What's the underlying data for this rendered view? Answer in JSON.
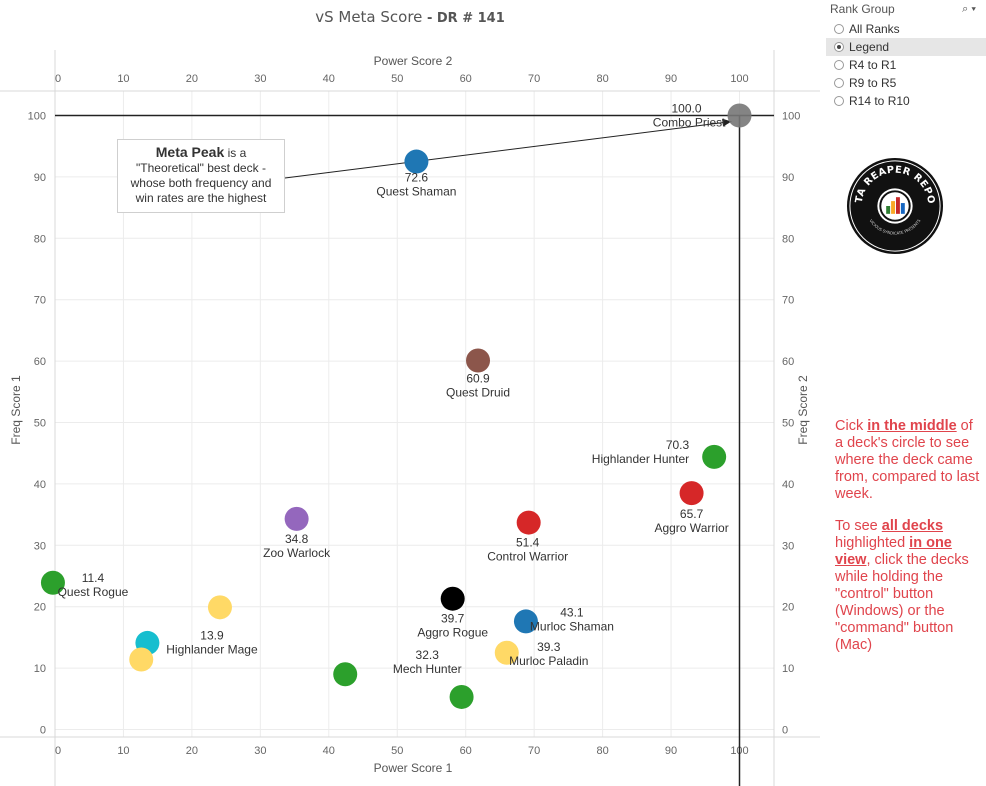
{
  "title": {
    "main": "vS Meta Score",
    "sub": " - DR # 141"
  },
  "chart_data": {
    "type": "scatter",
    "x_axis_bottom": {
      "label": "Power Score 1",
      "range": [
        0,
        105
      ],
      "ticks": [
        0,
        10,
        20,
        30,
        40,
        50,
        60,
        70,
        80,
        90,
        100
      ]
    },
    "x_axis_top": {
      "label": "Power Score 2",
      "ticks": [
        0,
        10,
        20,
        30,
        40,
        50,
        60,
        70,
        80,
        90,
        100
      ]
    },
    "y_axis_left": {
      "label": "Freq Score 1",
      "range": [
        0,
        105
      ],
      "ticks": [
        0,
        10,
        20,
        30,
        40,
        50,
        60,
        70,
        80,
        90,
        100
      ]
    },
    "y_axis_right": {
      "label": "Freq Score 2",
      "ticks": [
        0,
        10,
        20,
        30,
        40,
        50,
        60,
        70,
        80,
        90,
        100
      ]
    },
    "reference_lines": {
      "x": 100,
      "y": 100
    },
    "grid": true,
    "points": [
      {
        "name": "Combo Priest",
        "score": "100.0",
        "x": 100,
        "y": 100,
        "color": "#777777"
      },
      {
        "name": "Quest Shaman",
        "score": "72.6",
        "x": 52.8,
        "y": 92.5,
        "color": "#1f77b4"
      },
      {
        "name": "Quest Druid",
        "score": "60.9",
        "x": 61.8,
        "y": 60.1,
        "color": "#8c564b"
      },
      {
        "name": "Highlander Hunter",
        "score": "70.3",
        "x": 96.3,
        "y": 44.4,
        "color": "#2ca02c"
      },
      {
        "name": "Aggro Warrior",
        "score": "65.7",
        "x": 93.0,
        "y": 38.5,
        "color": "#d62728"
      },
      {
        "name": "Control Warrior",
        "score": "51.4",
        "x": 69.2,
        "y": 33.7,
        "color": "#d62728"
      },
      {
        "name": "Zoo Warlock",
        "score": "34.8",
        "x": 35.3,
        "y": 34.3,
        "color": "#9467bd"
      },
      {
        "name": "Quest Rogue",
        "score": "11.4",
        "x": -0.3,
        "y": 23.9,
        "color": "#2ca02c"
      },
      {
        "name": "Aggro Rogue",
        "score": "39.7",
        "x": 58.1,
        "y": 21.3,
        "color": "#000000"
      },
      {
        "name": "Murloc Shaman",
        "score": "43.1",
        "x": 68.8,
        "y": 17.6,
        "color": "#1f77b4"
      },
      {
        "name": "Murloc Paladin",
        "score": "39.3",
        "x": 66.0,
        "y": 12.5,
        "color": "#ffd966"
      },
      {
        "name": "Highlander Mage",
        "score": "13.9",
        "x": 24.1,
        "y": 19.9,
        "color": "#ffd966"
      },
      {
        "name": "",
        "score": "",
        "x": 13.5,
        "y": 14.1,
        "color": "#17becf"
      },
      {
        "name": "",
        "score": "",
        "x": 12.6,
        "y": 11.4,
        "color": "#ffd966"
      },
      {
        "name": "Mech Hunter",
        "score": "32.3",
        "x": 42.4,
        "y": 9.0,
        "color": "#2ca02c"
      },
      {
        "name": "",
        "score": "",
        "x": 59.4,
        "y": 5.3,
        "color": "#2ca02c"
      }
    ],
    "annotation": {
      "bold": "Meta Peak",
      "text_1": " is a",
      "text_2": "\"Theoretical\" best deck -",
      "text_3": "whose both frequency and",
      "text_4": "win rates are the highest"
    }
  },
  "filter": {
    "title": "Rank Group",
    "options": [
      {
        "label": "All Ranks",
        "selected": false
      },
      {
        "label": "Legend",
        "selected": true
      },
      {
        "label": "R4 to R1",
        "selected": false
      },
      {
        "label": "R9 to R5",
        "selected": false
      },
      {
        "label": "R14 to R10",
        "selected": false
      }
    ]
  },
  "logo": {
    "text_top": "DATA REAPER REPORT",
    "text_bottom": "VICIOUS SYNDICATE PRESENTS"
  },
  "note": {
    "p1_a": "Cick ",
    "p1_b": "in the middle",
    "p1_c": " of a deck's circle to see where the deck came from, compared to last week.",
    "p2_a": "To see ",
    "p2_b": "all decks",
    "p2_c": " highlighted ",
    "p2_d": "in one view",
    "p2_e": ", click the decks while holding the \"control\" button (Windows) or the \"command\" button (Mac)"
  }
}
